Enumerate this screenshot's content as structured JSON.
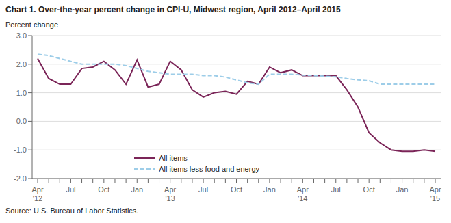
{
  "chart_data": {
    "type": "line",
    "title": "Chart 1. Over-the-year percent change in CPI-U, Midwest region, April 2012–April 2015",
    "ylabel": "Percent change",
    "annotations": [
      "Source: U.S. Bureau of Labor Statistics."
    ],
    "categories": [
      "Apr\n'12",
      null,
      null,
      "Jul",
      null,
      null,
      "Oct",
      null,
      null,
      "Jan",
      null,
      null,
      "Apr\n'13",
      null,
      null,
      "Jul",
      null,
      null,
      "Oct",
      null,
      null,
      "Jan",
      null,
      null,
      "Apr\n'14",
      null,
      null,
      "Jul",
      null,
      null,
      "Oct",
      null,
      null,
      "Jan",
      null,
      null,
      "Apr\n'15"
    ],
    "series": [
      {
        "name": "All items",
        "color": "#7B2558",
        "line_style": "solid",
        "values": [
          2.2,
          1.5,
          1.3,
          1.3,
          1.85,
          1.9,
          2.1,
          1.8,
          1.3,
          2.15,
          1.2,
          1.3,
          2.1,
          1.8,
          1.1,
          0.85,
          1.0,
          1.05,
          0.95,
          1.4,
          1.3,
          1.9,
          1.7,
          1.8,
          1.6,
          1.6,
          1.6,
          1.6,
          1.1,
          0.5,
          -0.4,
          -0.75,
          -1.0,
          -1.05,
          -1.05,
          -1.0,
          -1.05
        ]
      },
      {
        "name": "All items less food and energy",
        "color": "#9DCDE8",
        "line_style": "dashed",
        "values": [
          2.35,
          2.3,
          2.2,
          2.1,
          2.0,
          2.0,
          2.0,
          2.0,
          1.95,
          1.85,
          1.75,
          1.7,
          1.65,
          1.65,
          1.65,
          1.6,
          1.6,
          1.55,
          1.45,
          1.35,
          1.3,
          1.65,
          1.65,
          1.65,
          1.62,
          1.6,
          1.58,
          1.56,
          1.5,
          1.45,
          1.42,
          1.3,
          1.3,
          1.3,
          1.3,
          1.3,
          1.3
        ]
      }
    ],
    "ylim": [
      -2.0,
      3.0
    ],
    "yticks": [
      {
        "value": -2.0,
        "label": "-2.0"
      },
      {
        "value": -1.0,
        "label": "-1.0"
      },
      {
        "value": 0.0,
        "label": "0.0"
      },
      {
        "value": 1.0,
        "label": "1.0"
      },
      {
        "value": 2.0,
        "label": "2.0"
      },
      {
        "value": 3.0,
        "label": "3.0"
      }
    ],
    "grid": true,
    "legend": "lower left"
  }
}
